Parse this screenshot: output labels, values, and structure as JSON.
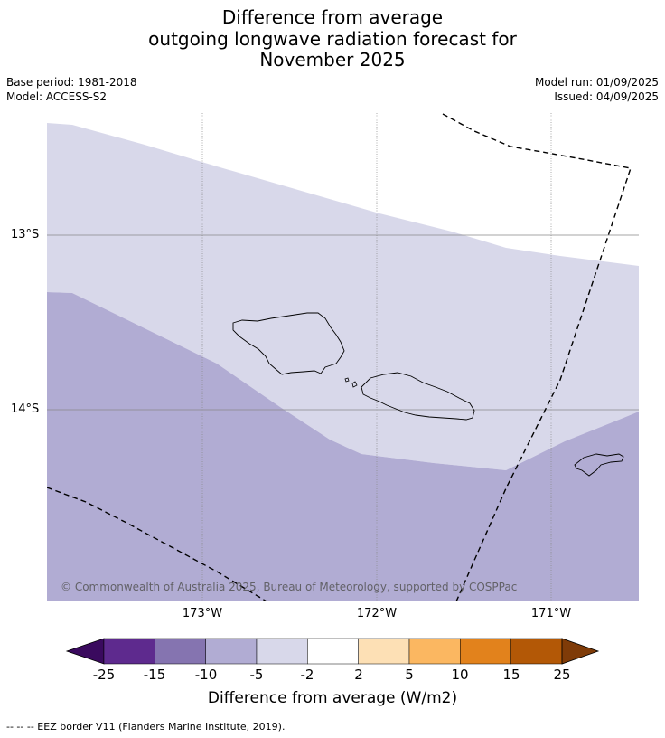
{
  "title": {
    "line1": "Difference from average",
    "line2": "outgoing longwave radiation forecast for",
    "line3": "November 2025"
  },
  "meta": {
    "base_period": "Base period: 1981-2018",
    "model": "Model: ACCESS-S2",
    "model_run": "Model run: 01/09/2025",
    "issued": "Issued: 04/09/2025"
  },
  "map": {
    "lat_labels": [
      "13°S",
      "14°S"
    ],
    "lon_labels": [
      "173°W",
      "172°W",
      "171°W"
    ],
    "copyright": "© Commonwealth of Australia 2025, Bureau of Meteorology, supported by COSPPac",
    "region_colors": {
      "light": "#d8d8ea",
      "medium": "#b1acd3",
      "land_outline": "#000000",
      "grid": "#888888"
    }
  },
  "colorbar": {
    "ticks": [
      "-25",
      "-15",
      "-10",
      "-5",
      "-2",
      "2",
      "5",
      "10",
      "15",
      "25"
    ],
    "colors": [
      "#3a0a5e",
      "#5e2a8e",
      "#8574b0",
      "#b1acd3",
      "#d8d8ea",
      "#ffffff",
      "#fde0b5",
      "#fbb761",
      "#e2821c",
      "#b35806",
      "#7f3b08"
    ],
    "label": "Difference from average (W/m2)"
  },
  "footnote": "--  --  -- EEZ border V11 (Flanders Marine Institute, 2019)."
}
